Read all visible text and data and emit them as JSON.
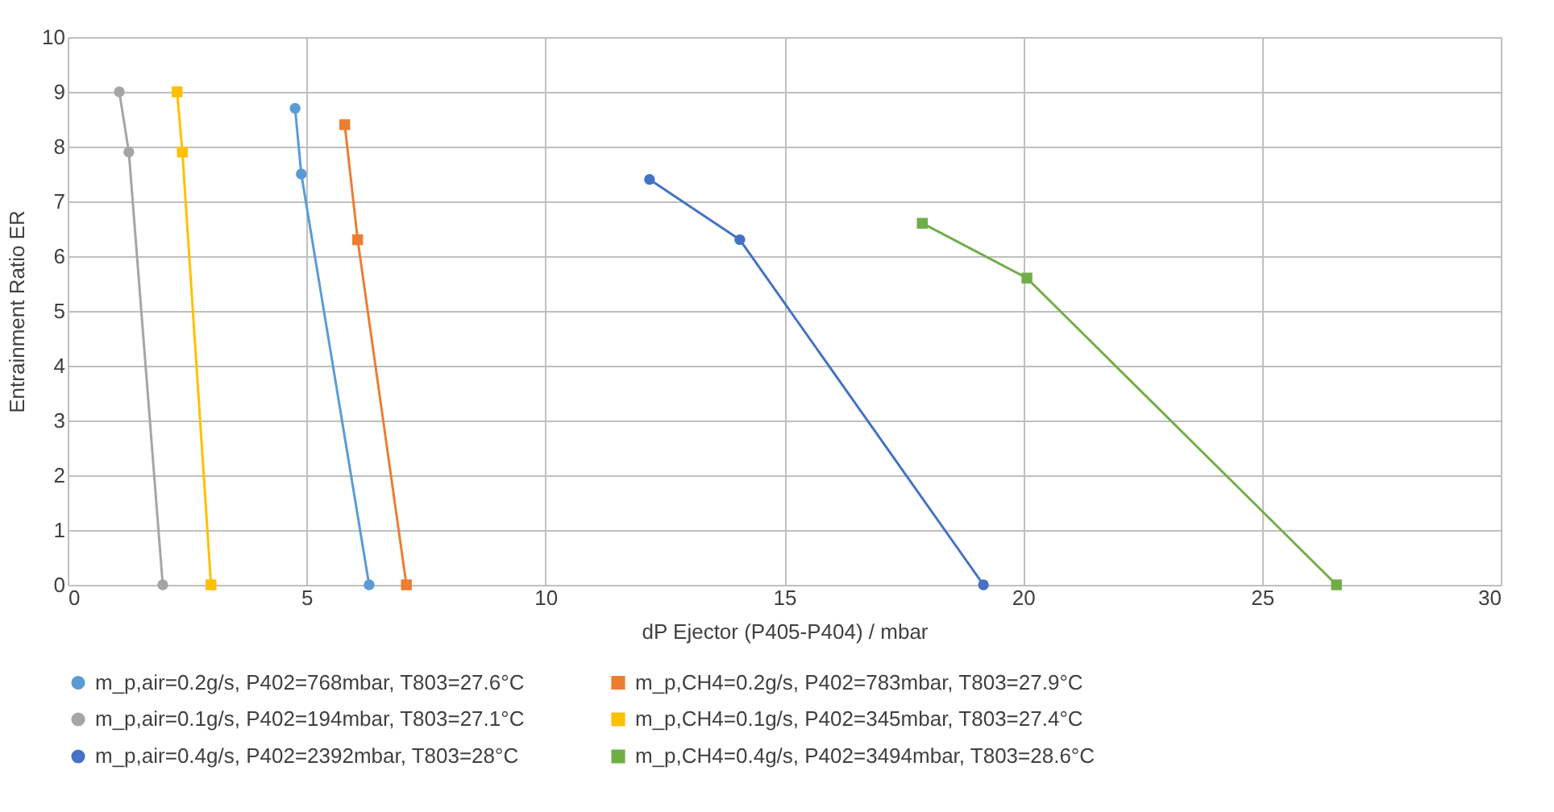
{
  "chart_data": {
    "type": "line",
    "xlabel": "dP Ejector (P405-P404) / mbar",
    "ylabel": "Entrainment Ratio ER",
    "xlim": [
      0,
      30
    ],
    "xticks": [
      0,
      5,
      10,
      15,
      20,
      25,
      30
    ],
    "ylim": [
      0,
      10
    ],
    "yticks": [
      0,
      1,
      2,
      3,
      4,
      5,
      6,
      7,
      8,
      9,
      10
    ],
    "grid": true,
    "legend": "bottom",
    "line_style": "solid",
    "series": [
      {
        "name": "m_p,air=0.2g/s, P402=768mbar, T803=27.6°C",
        "color": "#5b9bd5",
        "marker": "circle",
        "x": [
          4.76,
          4.89,
          6.31
        ],
        "values": [
          8.7,
          7.5,
          0
        ]
      },
      {
        "name": "m_p,CH4=0.2g/s, P402=783mbar, T803=27.9°C",
        "color": "#ed7d31",
        "marker": "square",
        "x": [
          5.8,
          6.07,
          7.09
        ],
        "values": [
          8.4,
          6.3,
          0
        ]
      },
      {
        "name": "m_p,air=0.1g/s, P402=194mbar, T803=27.1°C",
        "color": "#a5a5a5",
        "marker": "circle",
        "x": [
          1.08,
          1.28,
          1.99
        ],
        "values": [
          9.0,
          7.9,
          0
        ]
      },
      {
        "name": "m_p,CH4=0.1g/s, P402=345mbar, T803=27.4°C",
        "color": "#ffc000",
        "marker": "square",
        "x": [
          2.29,
          2.4,
          3.0
        ],
        "values": [
          9.0,
          7.9,
          0
        ]
      },
      {
        "name": "m_p,air=0.4g/s, P402=2392mbar, T803=28°C",
        "color": "#4472c4",
        "marker": "circle",
        "x": [
          12.18,
          14.07,
          19.17
        ],
        "values": [
          7.4,
          6.3,
          0
        ]
      },
      {
        "name": "m_p,CH4=0.4g/s, P402=3494mbar, T803=28.6°C",
        "color": "#70ad47",
        "marker": "square",
        "x": [
          17.89,
          20.08,
          26.56
        ],
        "values": [
          6.6,
          5.6,
          0
        ]
      }
    ]
  }
}
